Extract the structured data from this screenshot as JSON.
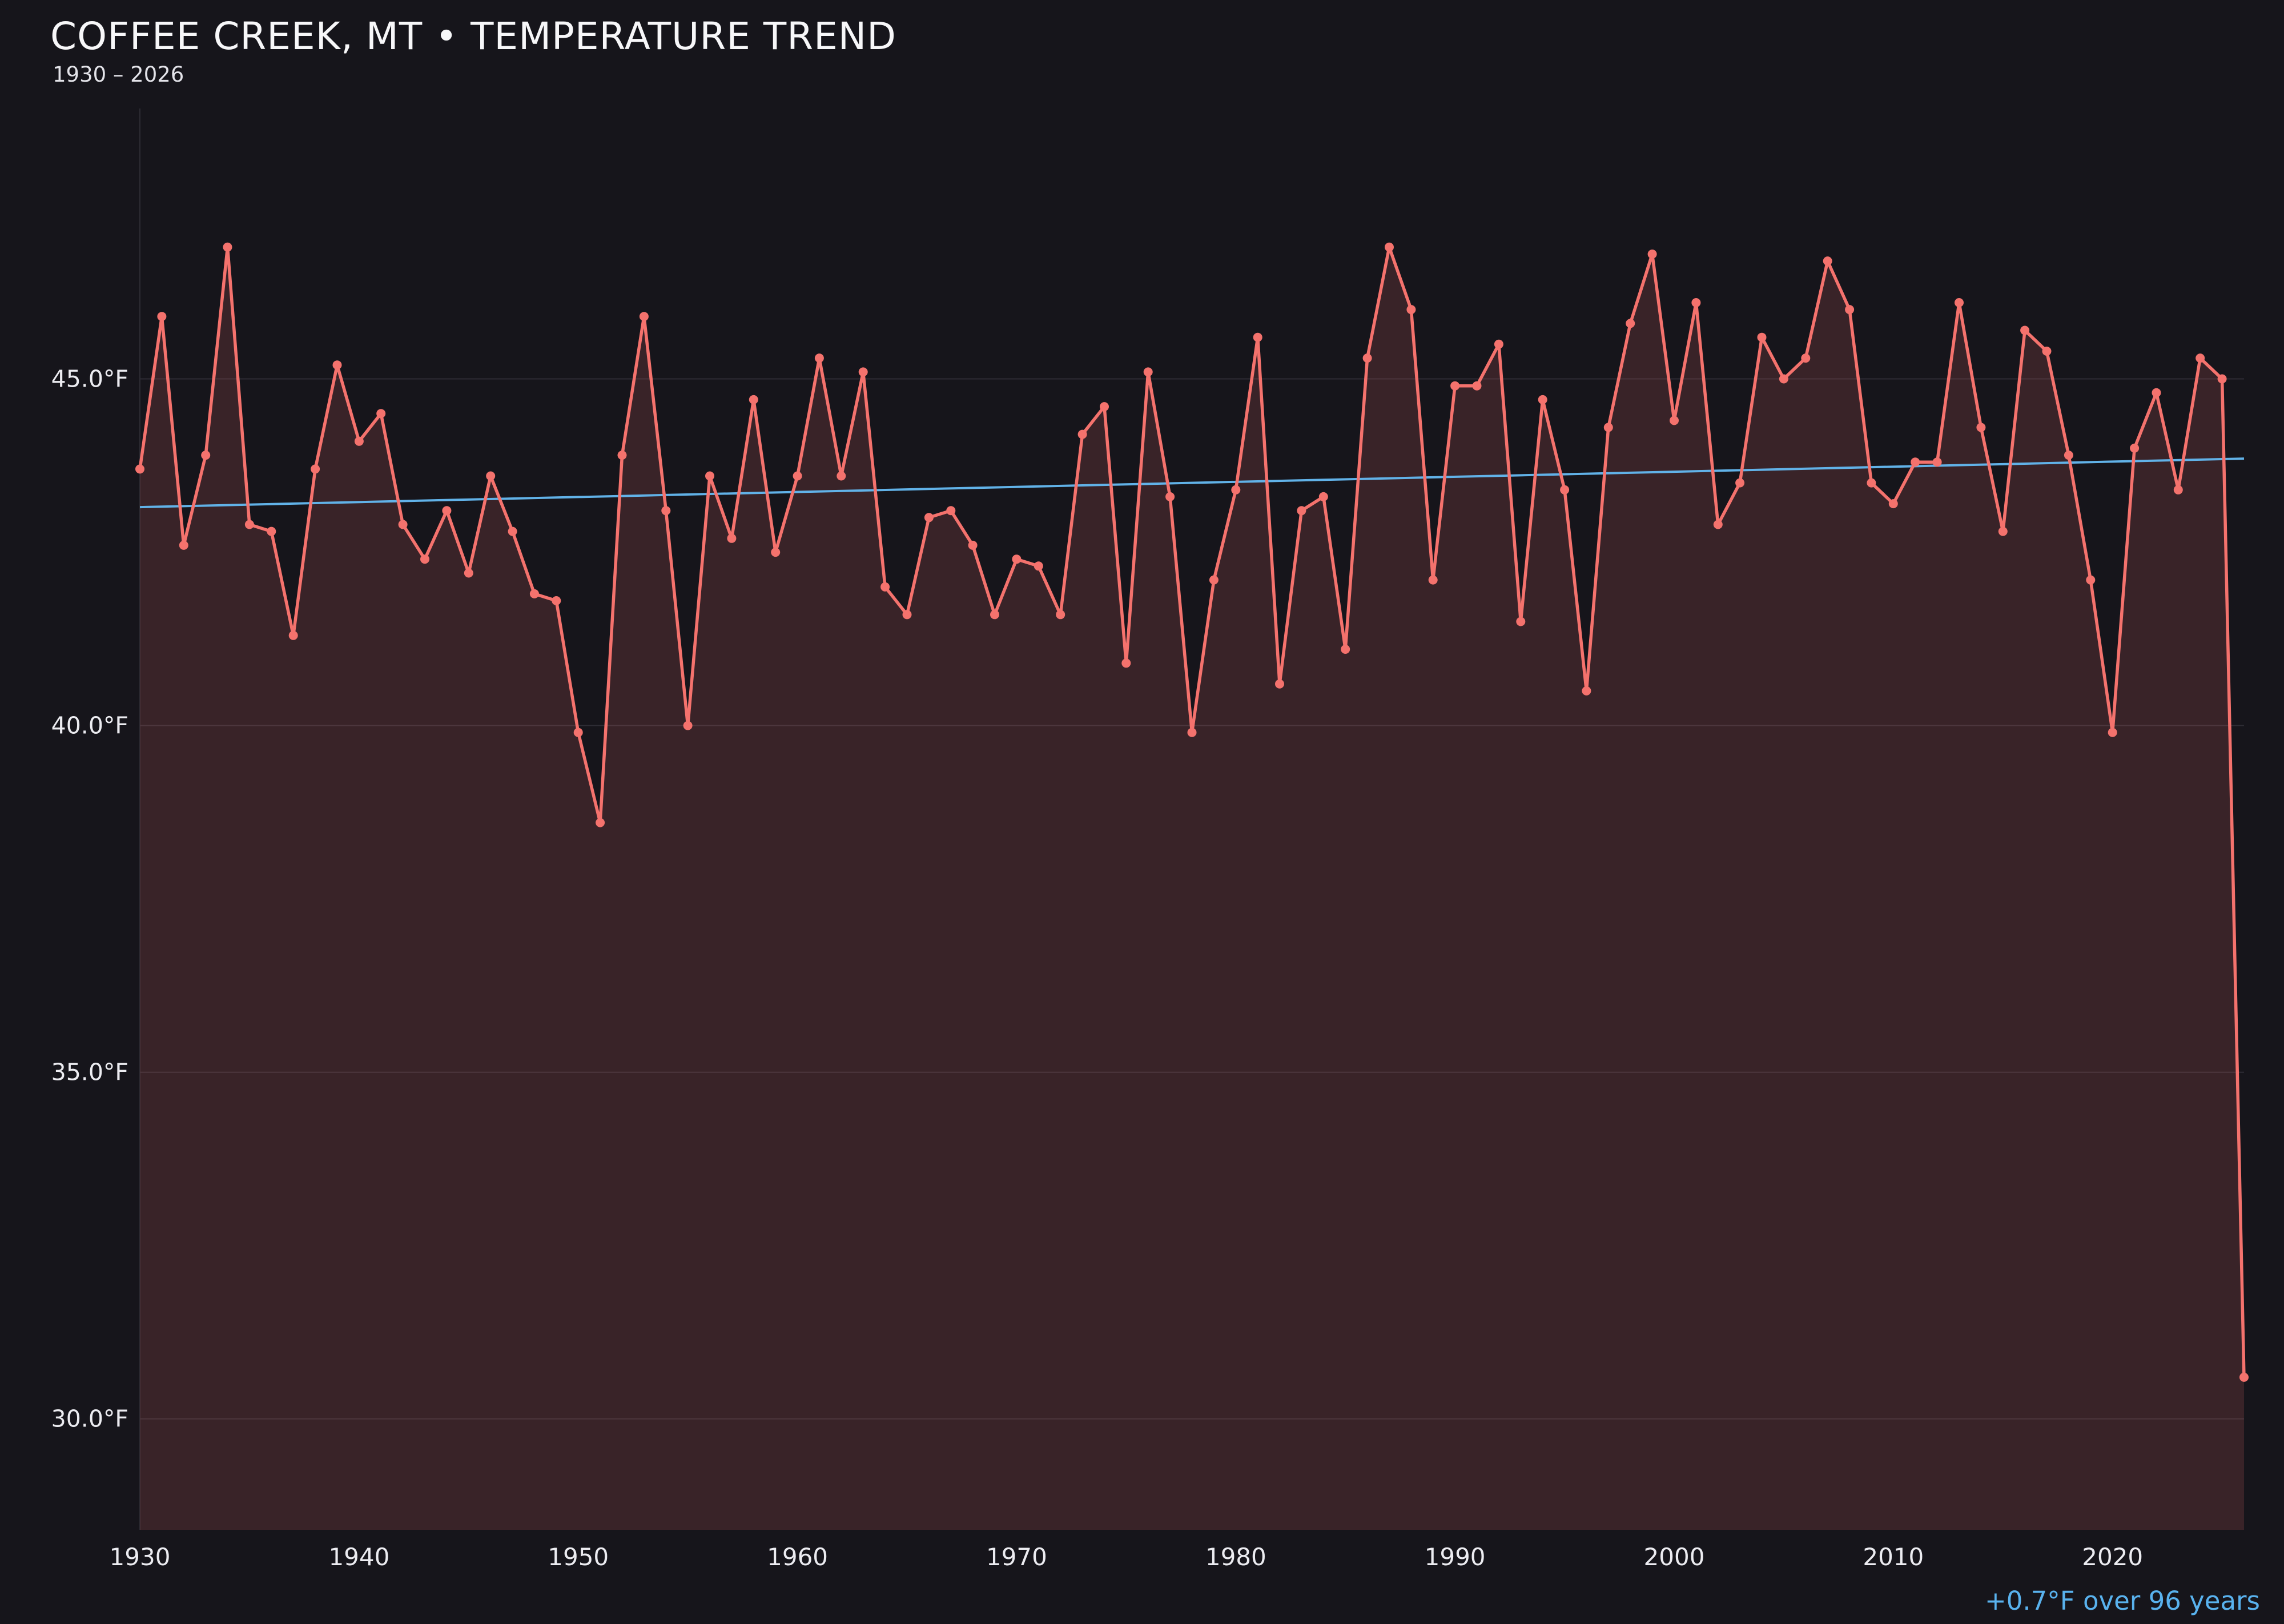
{
  "header": {
    "title": "COFFEE CREEK, MT • TEMPERATURE TREND",
    "subtitle": "1930 – 2026"
  },
  "footer": {
    "trend_note": "+0.7°F over 96 years"
  },
  "colors": {
    "background": "#16151b",
    "series_line": "#f4726d",
    "area_fill": "rgba(244,114,109,0.16)",
    "trend_line": "#61b2e8",
    "grid": "#2d2c34",
    "tick_text": "#ececf1",
    "title_text": "#f7f7f9",
    "footer_text": "#59b2ee"
  },
  "chart_data": {
    "type": "line",
    "title": "COFFEE CREEK, MT • TEMPERATURE TREND",
    "subtitle": "1930 – 2026",
    "xlabel": "",
    "ylabel": "°F",
    "x_start": 1930,
    "x_end": 2026,
    "ylim": [
      28.4,
      48.9
    ],
    "grid": "horizontal-only",
    "legend": "none",
    "annotation": "+0.7°F over 96 years",
    "y_ticks": [
      {
        "value": 45,
        "label": "45.0°F"
      },
      {
        "value": 40,
        "label": "40.0°F"
      },
      {
        "value": 35,
        "label": "35.0°F"
      },
      {
        "value": 30,
        "label": "30.0°F"
      }
    ],
    "x_ticks": [
      1930,
      1940,
      1950,
      1960,
      1970,
      1980,
      1990,
      2000,
      2010,
      2020
    ],
    "series": [
      {
        "name": "annual-mean-temperature-f",
        "values": [
          43.7,
          45.9,
          42.6,
          43.9,
          46.9,
          42.9,
          42.8,
          41.3,
          43.7,
          45.2,
          44.1,
          44.5,
          42.9,
          42.4,
          43.1,
          42.2,
          43.6,
          42.8,
          41.9,
          41.8,
          39.9,
          38.6,
          43.9,
          45.9,
          43.1,
          40.0,
          43.6,
          42.7,
          44.7,
          42.5,
          43.6,
          45.3,
          43.6,
          45.1,
          42.0,
          41.6,
          43.0,
          43.1,
          42.6,
          41.6,
          42.4,
          42.3,
          41.6,
          44.2,
          44.6,
          40.9,
          45.1,
          43.3,
          39.9,
          42.1,
          43.4,
          45.6,
          40.6,
          43.1,
          43.3,
          41.1,
          45.3,
          46.9,
          46.0,
          42.1,
          44.9,
          44.9,
          45.5,
          41.5,
          44.7,
          43.4,
          40.5,
          44.3,
          45.8,
          46.8,
          44.4,
          46.1,
          42.9,
          43.5,
          45.6,
          45.0,
          45.3,
          46.7,
          46.0,
          43.5,
          43.2,
          43.8,
          43.8,
          46.1,
          44.3,
          42.8,
          45.7,
          45.4,
          43.9,
          42.1,
          39.9,
          44.0,
          44.8,
          43.4,
          45.3,
          45.0,
          30.6
        ]
      }
    ],
    "trend_line": {
      "x0": 1930,
      "y0": 43.15,
      "x1": 2026,
      "y1": 43.85
    }
  }
}
